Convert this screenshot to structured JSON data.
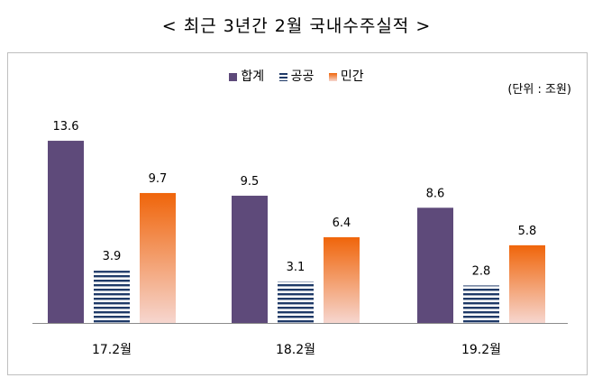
{
  "title": "< 최근 3년간 2월 국내수주실적 >",
  "unit": "(단위 : 조원)",
  "colors": {
    "total": "#5e4a7a",
    "public": "#1f3a68",
    "private_top": "#f0650a",
    "private_bottom": "#f6d6cf"
  },
  "chart_data": {
    "type": "bar",
    "categories": [
      "17.2월",
      "18.2월",
      "19.2월"
    ],
    "series": [
      {
        "name": "합계",
        "values": [
          13.6,
          9.5,
          8.6
        ]
      },
      {
        "name": "공공",
        "values": [
          3.9,
          3.1,
          2.8
        ]
      },
      {
        "name": "민간",
        "values": [
          9.7,
          6.4,
          5.8
        ]
      }
    ],
    "value_labels": [
      [
        "13.6",
        "3.9",
        "9.7"
      ],
      [
        "9.5",
        "3.1",
        "6.4"
      ],
      [
        "8.6",
        "2.8",
        "5.8"
      ]
    ],
    "ylim": [
      0,
      15
    ],
    "grid": false,
    "legend_position": "top"
  }
}
